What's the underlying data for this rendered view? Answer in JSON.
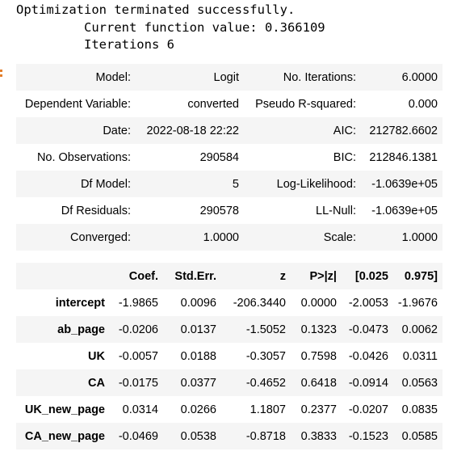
{
  "output": {
    "line1": "Optimization terminated successfully.",
    "line2": "         Current function value: 0.366109",
    "line3": "         Iterations 6"
  },
  "summary": {
    "rows": [
      [
        "Model:",
        "Logit",
        "No. Iterations:",
        "6.0000"
      ],
      [
        "Dependent Variable:",
        "converted",
        "Pseudo R-squared:",
        "0.000"
      ],
      [
        "Date:",
        "2022-08-18 22:22",
        "AIC:",
        "212782.6602"
      ],
      [
        "No. Observations:",
        "290584",
        "BIC:",
        "212846.1381"
      ],
      [
        "Df Model:",
        "5",
        "Log-Likelihood:",
        "-1.0639e+05"
      ],
      [
        "Df Residuals:",
        "290578",
        "LL-Null:",
        "-1.0639e+05"
      ],
      [
        "Converged:",
        "1.0000",
        "Scale:",
        "1.0000"
      ]
    ]
  },
  "coef": {
    "headers": [
      "",
      "Coef.",
      "Std.Err.",
      "z",
      "P>|z|",
      "[0.025",
      "0.975]"
    ],
    "rows": [
      [
        "intercept",
        "-1.9865",
        "0.0096",
        "-206.3440",
        "0.0000",
        "-2.0053",
        "-1.9676"
      ],
      [
        "ab_page",
        "-0.0206",
        "0.0137",
        "-1.5052",
        "0.1323",
        "-0.0473",
        "0.0062"
      ],
      [
        "UK",
        "-0.0057",
        "0.0188",
        "-0.3057",
        "0.7598",
        "-0.0426",
        "0.0311"
      ],
      [
        "CA",
        "-0.0175",
        "0.0377",
        "-0.4652",
        "0.6418",
        "-0.0914",
        "0.0563"
      ],
      [
        "UK_new_page",
        "0.0314",
        "0.0266",
        "1.1807",
        "0.2377",
        "-0.0207",
        "0.0835"
      ],
      [
        "CA_new_page",
        "-0.0469",
        "0.0538",
        "-0.8718",
        "0.3833",
        "-0.1523",
        "0.0585"
      ]
    ]
  },
  "colors": {
    "stripe": "#f5f5f5",
    "prompt_mark": "#e37e2a"
  }
}
